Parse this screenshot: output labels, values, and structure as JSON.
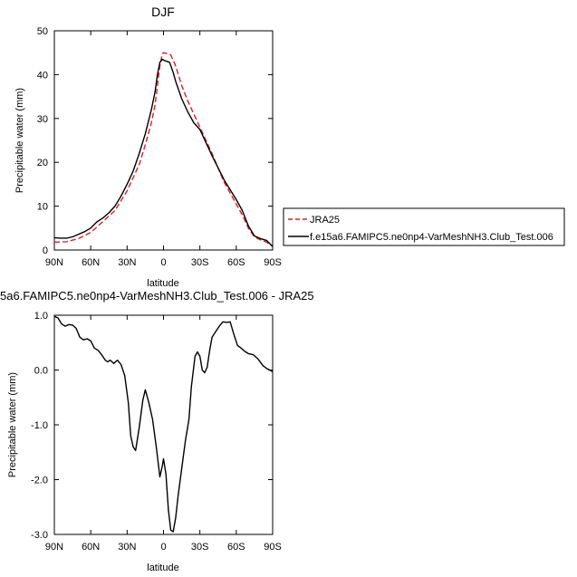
{
  "chart_data": [
    {
      "type": "line",
      "title": "DJF",
      "xlabel": "latitude",
      "ylabel": "Precipitable water (mm)",
      "xlim": [
        90,
        -90
      ],
      "ylim": [
        0,
        50
      ],
      "xticks": [
        90,
        60,
        30,
        0,
        -30,
        -60,
        -90
      ],
      "xtick_labels": [
        "90N",
        "60N",
        "30N",
        "0",
        "30S",
        "60S",
        "90S"
      ],
      "yticks": [
        0,
        10,
        20,
        30,
        40,
        50
      ],
      "ytick_labels": [
        "0",
        "10",
        "20",
        "30",
        "40",
        "50"
      ],
      "legend_position": "right",
      "series": [
        {
          "name": "JRA25",
          "color": "#e41a1c",
          "dash": "dashed",
          "points": [
            [
              90,
              1.8
            ],
            [
              80,
              1.9
            ],
            [
              70,
              2.6
            ],
            [
              60,
              4.0
            ],
            [
              50,
              6.5
            ],
            [
              40,
              9.0
            ],
            [
              30,
              13.5
            ],
            [
              20,
              19.5
            ],
            [
              15,
              24.0
            ],
            [
              10,
              29.0
            ],
            [
              7,
              33.0
            ],
            [
              5,
              37.5
            ],
            [
              3,
              42.0
            ],
            [
              1,
              44.8
            ],
            [
              0,
              45.0
            ],
            [
              -3,
              44.8
            ],
            [
              -6,
              44.5
            ],
            [
              -10,
              42.0
            ],
            [
              -15,
              37.5
            ],
            [
              -20,
              34.0
            ],
            [
              -30,
              28.0
            ],
            [
              -40,
              22.0
            ],
            [
              -50,
              15.5
            ],
            [
              -60,
              10.5
            ],
            [
              -65,
              8.0
            ],
            [
              -70,
              5.0
            ],
            [
              -75,
              3.0
            ],
            [
              -80,
              2.3
            ],
            [
              -85,
              1.8
            ],
            [
              -90,
              0.8
            ]
          ]
        },
        {
          "name": "f.e15a6.FAMIPC5.ne0np4-VarMeshNH3.Club_Test.006",
          "color": "#000000",
          "dash": "solid",
          "points": [
            [
              90,
              2.8
            ],
            [
              85,
              2.7
            ],
            [
              80,
              2.7
            ],
            [
              75,
              3.0
            ],
            [
              70,
              3.6
            ],
            [
              65,
              4.2
            ],
            [
              60,
              5.0
            ],
            [
              55,
              6.4
            ],
            [
              50,
              7.3
            ],
            [
              45,
              8.5
            ],
            [
              40,
              10.0
            ],
            [
              35,
              12.3
            ],
            [
              30,
              15.0
            ],
            [
              25,
              18.0
            ],
            [
              20,
              22.0
            ],
            [
              15,
              26.5
            ],
            [
              10,
              32.0
            ],
            [
              7,
              36.0
            ],
            [
              5,
              40.0
            ],
            [
              3,
              42.8
            ],
            [
              1,
              43.5
            ],
            [
              -1,
              43.2
            ],
            [
              -5,
              42.8
            ],
            [
              -8,
              40.5
            ],
            [
              -10,
              38.5
            ],
            [
              -15,
              34.5
            ],
            [
              -20,
              31.5
            ],
            [
              -25,
              29.0
            ],
            [
              -30,
              27.5
            ],
            [
              -40,
              21.5
            ],
            [
              -50,
              16.0
            ],
            [
              -60,
              11.5
            ],
            [
              -65,
              9.0
            ],
            [
              -70,
              5.5
            ],
            [
              -75,
              3.2
            ],
            [
              -80,
              2.6
            ],
            [
              -85,
              2.2
            ],
            [
              -90,
              0.8
            ]
          ]
        }
      ]
    },
    {
      "type": "line",
      "title": "5a6.FAMIPC5.ne0np4-VarMeshNH3.Club_Test.006 - JRA25",
      "xlabel": "latitude",
      "ylabel": "Precipitable water (mm)",
      "xlim": [
        90,
        -90
      ],
      "ylim": [
        -3,
        1
      ],
      "xticks": [
        90,
        60,
        30,
        0,
        -30,
        -60,
        -90
      ],
      "xtick_labels": [
        "90N",
        "60N",
        "30N",
        "0",
        "30S",
        "60S",
        "90S"
      ],
      "yticks": [
        -3,
        -2,
        -1,
        0,
        1
      ],
      "ytick_labels": [
        "-3.0",
        "-2.0",
        "-1.0",
        "0.0",
        "1.0"
      ],
      "series": [
        {
          "color": "#000000",
          "dash": "solid",
          "points": [
            [
              90,
              0.98
            ],
            [
              87,
              0.95
            ],
            [
              84,
              0.84
            ],
            [
              81,
              0.8
            ],
            [
              78,
              0.83
            ],
            [
              75,
              0.82
            ],
            [
              72,
              0.76
            ],
            [
              69,
              0.6
            ],
            [
              66,
              0.55
            ],
            [
              63,
              0.57
            ],
            [
              60,
              0.53
            ],
            [
              57,
              0.4
            ],
            [
              54,
              0.36
            ],
            [
              51,
              0.28
            ],
            [
              48,
              0.18
            ],
            [
              46,
              0.15
            ],
            [
              44,
              0.18
            ],
            [
              41,
              0.12
            ],
            [
              38,
              0.18
            ],
            [
              35,
              0.1
            ],
            [
              32,
              -0.1
            ],
            [
              29,
              -0.6
            ],
            [
              27,
              -1.2
            ],
            [
              25,
              -1.4
            ],
            [
              23,
              -1.47
            ],
            [
              20,
              -1.05
            ],
            [
              17,
              -0.55
            ],
            [
              15,
              -0.36
            ],
            [
              12,
              -0.6
            ],
            [
              9,
              -0.9
            ],
            [
              6,
              -1.4
            ],
            [
              3,
              -1.95
            ],
            [
              1,
              -1.75
            ],
            [
              0,
              -1.62
            ],
            [
              -2,
              -1.9
            ],
            [
              -4,
              -2.55
            ],
            [
              -6,
              -2.92
            ],
            [
              -8,
              -2.95
            ],
            [
              -10,
              -2.7
            ],
            [
              -12,
              -2.3
            ],
            [
              -15,
              -1.8
            ],
            [
              -18,
              -1.3
            ],
            [
              -21,
              -0.9
            ],
            [
              -23,
              -0.3
            ],
            [
              -26,
              0.25
            ],
            [
              -28,
              0.33
            ],
            [
              -30,
              0.25
            ],
            [
              -32,
              0.0
            ],
            [
              -34,
              -0.05
            ],
            [
              -36,
              0.05
            ],
            [
              -38,
              0.35
            ],
            [
              -40,
              0.6
            ],
            [
              -43,
              0.7
            ],
            [
              -46,
              0.8
            ],
            [
              -49,
              0.88
            ],
            [
              -52,
              0.87
            ],
            [
              -55,
              0.88
            ],
            [
              -58,
              0.65
            ],
            [
              -61,
              0.45
            ],
            [
              -64,
              0.4
            ],
            [
              -67,
              0.34
            ],
            [
              -70,
              0.3
            ],
            [
              -74,
              0.28
            ],
            [
              -78,
              0.2
            ],
            [
              -82,
              0.08
            ],
            [
              -85,
              0.03
            ],
            [
              -90,
              -0.03
            ]
          ]
        }
      ]
    }
  ]
}
